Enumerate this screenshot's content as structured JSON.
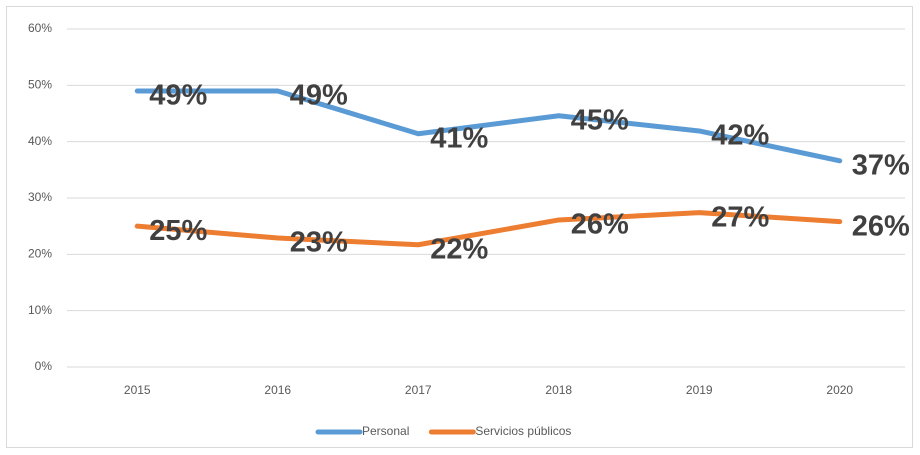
{
  "chart_data": {
    "type": "line",
    "categories": [
      "2015",
      "2016",
      "2017",
      "2018",
      "2019",
      "2020"
    ],
    "series": [
      {
        "name": "Personal",
        "color": "#5b9bd5",
        "values": [
          49.0,
          49.0,
          41.4,
          44.6,
          41.9,
          36.6
        ],
        "value_labels": [
          "49%",
          "49%",
          "41%",
          "45%",
          "42%",
          "37%"
        ]
      },
      {
        "name": "Servicios públicos",
        "color": "#ed7d31",
        "values": [
          25.0,
          22.9,
          21.7,
          26.1,
          27.4,
          25.8
        ],
        "value_labels": [
          "25%",
          "23%",
          "22%",
          "26%",
          "27%",
          "26%"
        ]
      }
    ],
    "ylim": [
      0,
      60
    ],
    "yticks": [
      {
        "value": 0,
        "label": "0%"
      },
      {
        "value": 10,
        "label": "10%"
      },
      {
        "value": 20,
        "label": "20%"
      },
      {
        "value": 30,
        "label": "30%"
      },
      {
        "value": 40,
        "label": "40%"
      },
      {
        "value": 50,
        "label": "50%"
      },
      {
        "value": 60,
        "label": "60%"
      }
    ],
    "grid": true,
    "legend": "bottom"
  }
}
